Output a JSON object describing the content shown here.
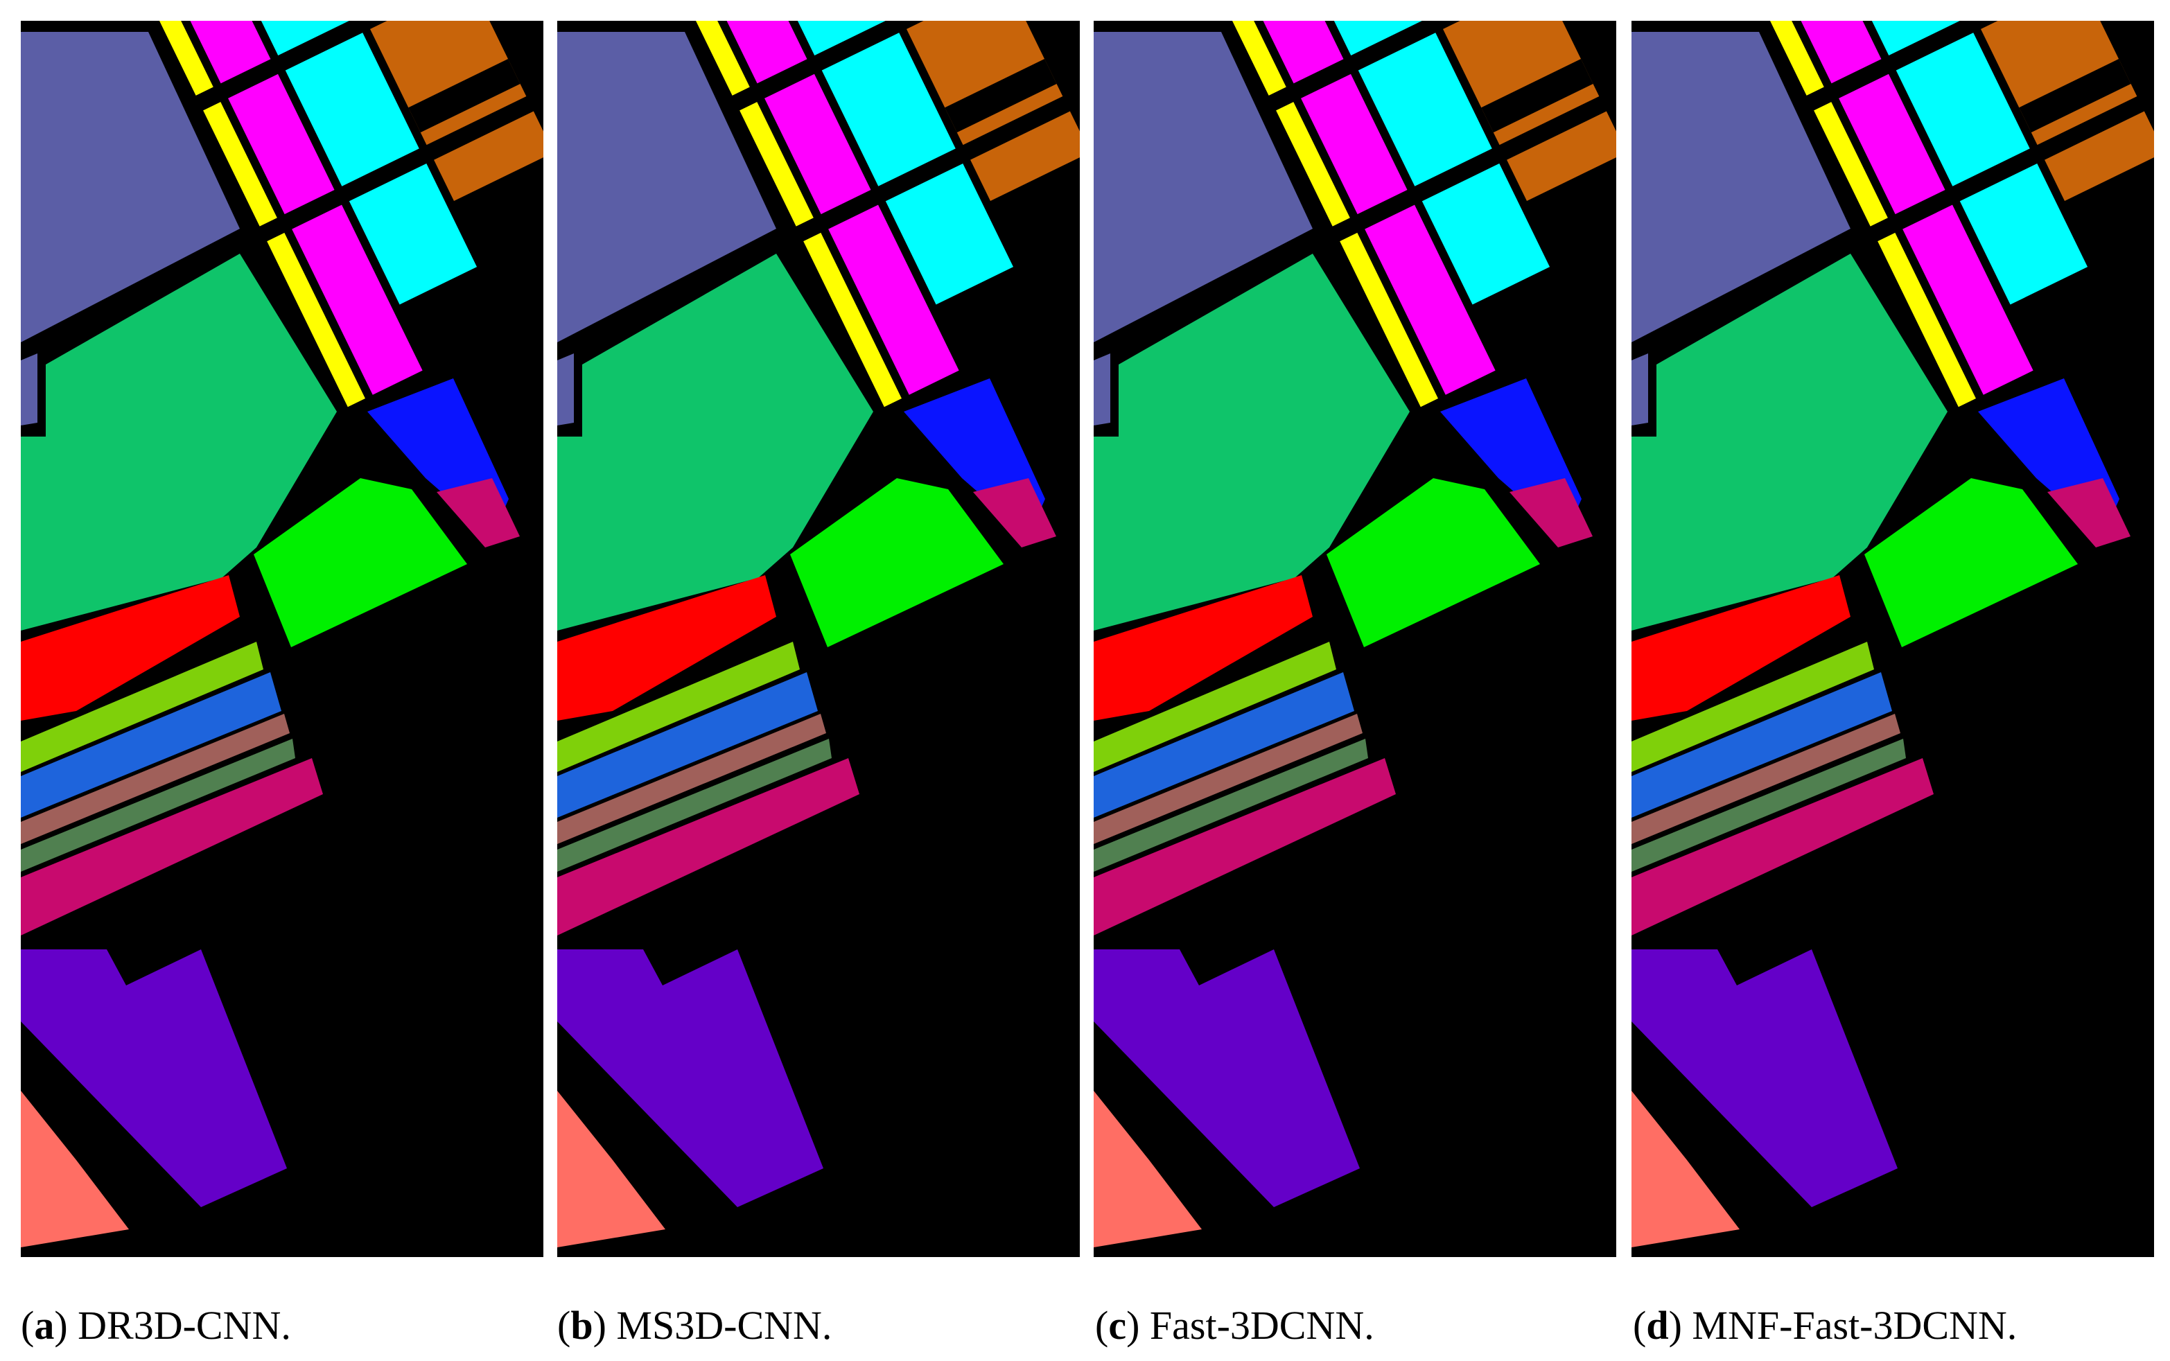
{
  "panels": [
    {
      "open": "(",
      "letter": "a",
      "close": ")",
      "caption": "DR3D-CNN."
    },
    {
      "open": "(",
      "letter": "b",
      "close": ")",
      "caption": "MS3D-CNN."
    },
    {
      "open": "(",
      "letter": "c",
      "close": ")",
      "caption": "Fast-3DCNN."
    },
    {
      "open": "(",
      "letter": "d",
      "close": ")",
      "caption": "MNF-Fast-3DCNN."
    }
  ]
}
